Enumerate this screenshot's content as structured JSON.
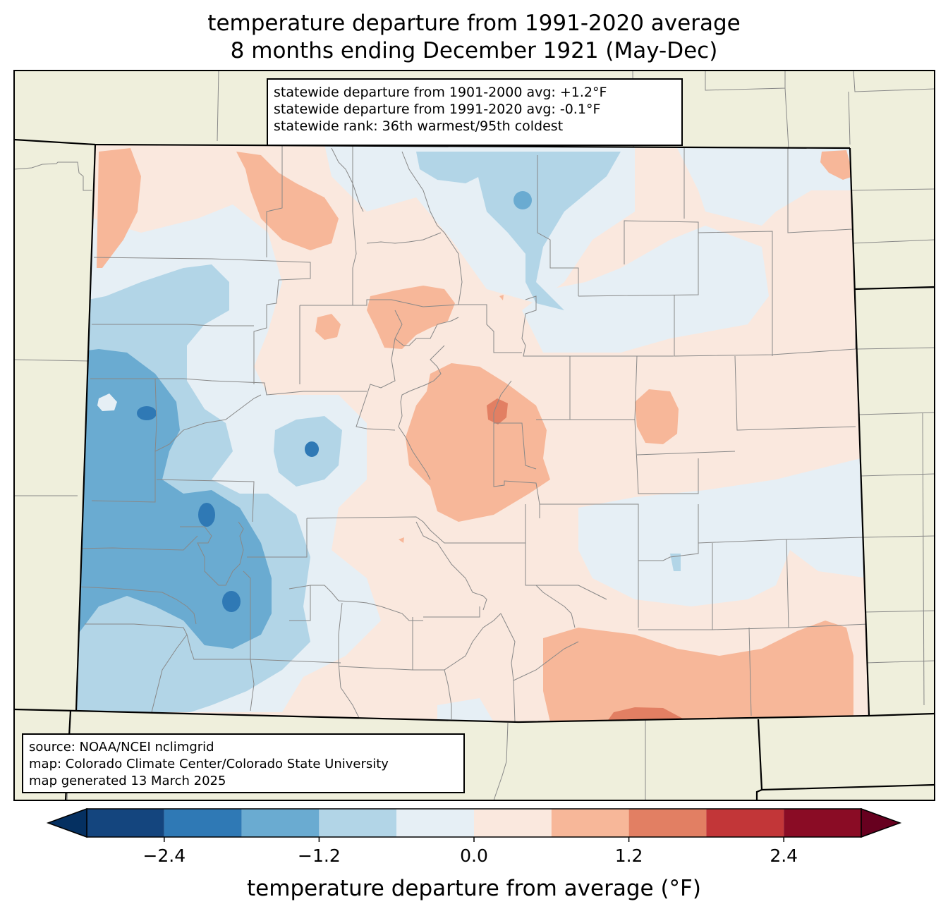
{
  "title": {
    "line1": "temperature departure from 1991-2020 average",
    "line2": "8 months ending December 1921 (May-Dec)"
  },
  "stats": {
    "line1": "statewide departure from 1901-2000 avg: +1.2°F",
    "line2": "statewide departure from 1991-2020 avg: -0.1°F",
    "line3": "statewide rank: 36th warmest/95th coldest"
  },
  "source": {
    "line1": "source: NOAA/NCEI nclimgrid",
    "line2": "map: Colorado Climate Center/Colorado State University",
    "line3": "map generated 13 March 2025"
  },
  "colorbar": {
    "label": "temperature departure from average (°F)",
    "ticks": [
      "−2.4",
      "−1.2",
      "0.0",
      "1.2",
      "2.4"
    ],
    "tick_values": [
      -2.4,
      -1.2,
      0.0,
      1.2,
      2.4
    ],
    "bins": [
      -3.0,
      -2.4,
      -1.8,
      -1.2,
      -0.6,
      0.0,
      0.6,
      1.2,
      1.8,
      2.4,
      3.0
    ],
    "colors": [
      "#14457e",
      "#2f79b5",
      "#6aabd1",
      "#b2d5e7",
      "#e6eff5",
      "#fae8de",
      "#f7b799",
      "#e27f63",
      "#c23638",
      "#8a0c25"
    ],
    "under_color": "#053061",
    "over_color": "#67001f"
  },
  "map_colors": {
    "land": "#efefdc",
    "county_lines": "#888888",
    "state_lines": "#000000"
  }
}
